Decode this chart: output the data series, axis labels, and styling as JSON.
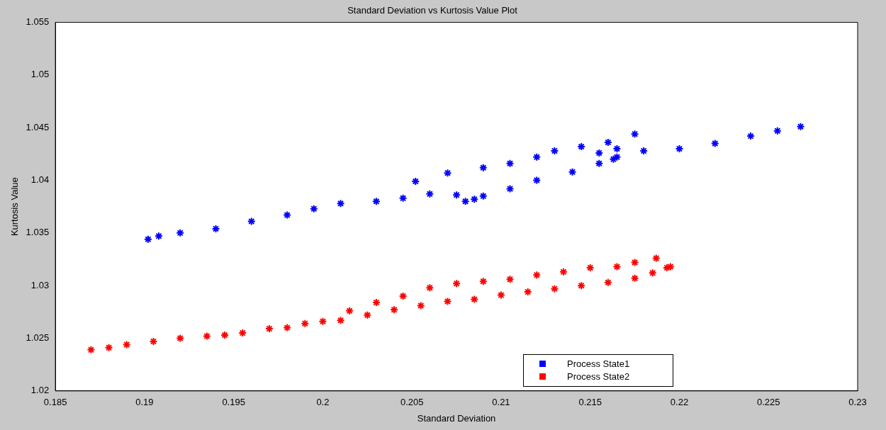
{
  "chart_data": {
    "type": "scatter",
    "title": "Standard Deviation vs Kurtosis Value Plot",
    "xlabel": "Standard Deviation",
    "ylabel": "Kurtosis Value",
    "xlim": [
      0.185,
      0.23
    ],
    "xticks": [
      0.185,
      0.19,
      0.195,
      0.2,
      0.205,
      0.21,
      0.215,
      0.22,
      0.225,
      0.23
    ],
    "ylim": [
      1.02,
      1.055
    ],
    "yticks": [
      1.02,
      1.025,
      1.03,
      1.035,
      1.04,
      1.045,
      1.05,
      1.055
    ],
    "grid": false,
    "legend": "bottom right",
    "marker": "cross",
    "series": [
      {
        "name": "Process State1",
        "color": "#0000ff",
        "x": [
          0.1902,
          0.1908,
          0.192,
          0.194,
          0.196,
          0.198,
          0.1995,
          0.201,
          0.203,
          0.2045,
          0.206,
          0.2075,
          0.208,
          0.2085,
          0.209,
          0.2105,
          0.212,
          0.214,
          0.2155,
          0.2165,
          0.218,
          0.22,
          0.222,
          0.224,
          0.2255,
          0.2268,
          0.2052,
          0.207,
          0.209,
          0.2105,
          0.212,
          0.213,
          0.2145,
          0.216,
          0.2175,
          0.2165,
          0.2155,
          0.2163
        ],
        "values": [
          1.0344,
          1.0347,
          1.035,
          1.0354,
          1.0361,
          1.0367,
          1.0373,
          1.0378,
          1.038,
          1.0383,
          1.0387,
          1.0386,
          1.038,
          1.0382,
          1.0385,
          1.0392,
          1.04,
          1.0408,
          1.0416,
          1.0422,
          1.0428,
          1.043,
          1.0435,
          1.0442,
          1.0447,
          1.0451,
          1.0399,
          1.0407,
          1.0412,
          1.0416,
          1.0422,
          1.0428,
          1.0432,
          1.0436,
          1.0444,
          1.043,
          1.0426,
          1.042
        ]
      },
      {
        "name": "Process State2",
        "color": "#ff0000",
        "x": [
          0.187,
          0.188,
          0.189,
          0.1905,
          0.192,
          0.1935,
          0.1945,
          0.1955,
          0.197,
          0.198,
          0.199,
          0.2,
          0.201,
          0.2025,
          0.204,
          0.2055,
          0.207,
          0.2085,
          0.21,
          0.2115,
          0.213,
          0.2145,
          0.216,
          0.2175,
          0.2185,
          0.2193,
          0.2015,
          0.203,
          0.2045,
          0.206,
          0.2075,
          0.209,
          0.2105,
          0.212,
          0.2135,
          0.215,
          0.2165,
          0.2175,
          0.2187,
          0.2195
        ],
        "values": [
          1.0239,
          1.0241,
          1.0244,
          1.0247,
          1.025,
          1.0252,
          1.0253,
          1.0255,
          1.0259,
          1.026,
          1.0264,
          1.0266,
          1.0267,
          1.0272,
          1.0277,
          1.0281,
          1.0285,
          1.0287,
          1.0291,
          1.0294,
          1.0297,
          1.03,
          1.0303,
          1.0307,
          1.0312,
          1.0317,
          1.0276,
          1.0284,
          1.029,
          1.0298,
          1.0302,
          1.0304,
          1.0306,
          1.031,
          1.0313,
          1.0317,
          1.0318,
          1.0322,
          1.0326,
          1.0318
        ]
      }
    ]
  }
}
